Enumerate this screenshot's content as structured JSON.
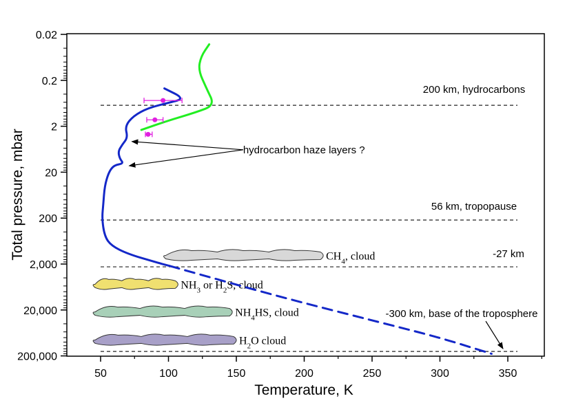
{
  "chart_data": {
    "type": "line",
    "xlabel": "Temperature, K",
    "ylabel": "Total pressure, mbar",
    "xlim": [
      25,
      375
    ],
    "xticks": [
      "50",
      "100",
      "150",
      "200",
      "250",
      "300",
      "350"
    ],
    "ylim_log_mbar": [
      0.02,
      200000
    ],
    "yscale": "log",
    "yticks": [
      "0.02",
      "0.2",
      "2",
      "20",
      "200",
      "2,000",
      "20,000",
      "200,000"
    ],
    "series": [
      {
        "color": "#1428c8",
        "style": "solid",
        "points": [
          [
            97,
            0.3
          ],
          [
            112,
            0.5
          ],
          [
            100,
            0.62
          ],
          [
            85,
            0.8
          ],
          [
            74,
            1.2
          ],
          [
            68,
            2.0
          ],
          [
            70,
            3.5
          ],
          [
            66,
            5
          ],
          [
            63,
            7
          ],
          [
            64,
            10
          ],
          [
            67,
            13
          ],
          [
            60,
            14
          ],
          [
            56,
            20
          ],
          [
            53,
            40
          ],
          [
            52,
            100
          ],
          [
            51,
            200
          ],
          [
            53,
            500
          ],
          [
            58,
            800
          ],
          [
            70,
            1200
          ],
          [
            90,
            1800
          ],
          [
            101,
            2200
          ]
        ]
      },
      {
        "color": "#1428c8",
        "style": "dashed",
        "points": [
          [
            101,
            2200
          ],
          [
            180,
            10000
          ],
          [
            260,
            40000
          ],
          [
            300,
            80000
          ],
          [
            338,
            180000
          ]
        ]
      },
      {
        "color": "#22ee22",
        "style": "solid",
        "points": [
          [
            130,
            0.033
          ],
          [
            124,
            0.06
          ],
          [
            122,
            0.12
          ],
          [
            128,
            0.3
          ],
          [
            134,
            0.7
          ],
          [
            120,
            1.0
          ],
          [
            100,
            1.5
          ],
          [
            80,
            2.4
          ]
        ]
      }
    ],
    "error_points": {
      "color": "#e020e0",
      "points": [
        {
          "x": 96,
          "y": 0.55,
          "xerr": [
            82,
            110
          ]
        },
        {
          "x": 90,
          "y": 1.45,
          "xerr": [
            84,
            96
          ]
        },
        {
          "x": 85,
          "y": 3.0,
          "xerr": [
            83,
            88
          ]
        }
      ]
    },
    "reference_lines": [
      {
        "y": 0.7,
        "x_from": 50,
        "x_to": 350,
        "label": "200 km, hydrocarbons"
      },
      {
        "y": 220,
        "x_from": 50,
        "x_to": 350,
        "label": "56 km, tropopause"
      },
      {
        "y": 2300,
        "x_from": 50,
        "x_to": 350,
        "label": "-27 km"
      },
      {
        "y": 160000,
        "x_from": 50,
        "x_to": 350,
        "label": "-300 km, base of the troposphere"
      }
    ],
    "clouds": [
      {
        "label": "CH",
        "sub": "4",
        "label_rest": ", cloud",
        "color": "#d8d8d8",
        "x_from": 98,
        "x_to": 212,
        "y": 1300
      },
      {
        "label": "NH",
        "sub": "3",
        "label_rest": " or H",
        "sub2": "2",
        "label_rest2": "S, cloud",
        "color": "#f0e070",
        "x_from": 46,
        "x_to": 105,
        "y": 5500
      },
      {
        "label": "NH",
        "sub": "4",
        "label_rest": "HS, cloud",
        "color": "#a8d0b8",
        "x_from": 46,
        "x_to": 145,
        "y": 22000
      },
      {
        "label": "H",
        "sub": "2",
        "label_rest": "O cloud",
        "color": "#a8a0c8",
        "x_from": 46,
        "x_to": 148,
        "y": 90000
      }
    ],
    "annotation": {
      "text": "hydrocarbon haze layers ?",
      "arrow_targets": [
        [
          70,
          4.3
        ],
        [
          68,
          14.5
        ]
      ],
      "arrow_origin": [
        155,
        6.5
      ]
    }
  }
}
